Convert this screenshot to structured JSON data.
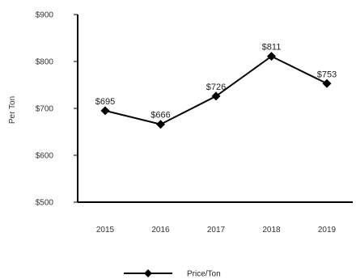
{
  "chart_data": {
    "type": "line",
    "title": "",
    "xlabel": "",
    "ylabel": "Per Ton",
    "categories": [
      "2015",
      "2016",
      "2017",
      "2018",
      "2019"
    ],
    "series": [
      {
        "name": "Price/Ton",
        "values": [
          695,
          666,
          726,
          811,
          753
        ],
        "data_labels": [
          "$695",
          "$666",
          "$726",
          "$811",
          "$753"
        ],
        "color": "#000000",
        "marker": "diamond"
      }
    ],
    "ylim": [
      500,
      900
    ],
    "yticks": [
      500,
      600,
      700,
      800,
      900
    ],
    "ytick_labels": [
      "$500",
      "$600",
      "$700",
      "$800",
      "$900"
    ],
    "grid": false,
    "legend_position": "bottom"
  }
}
